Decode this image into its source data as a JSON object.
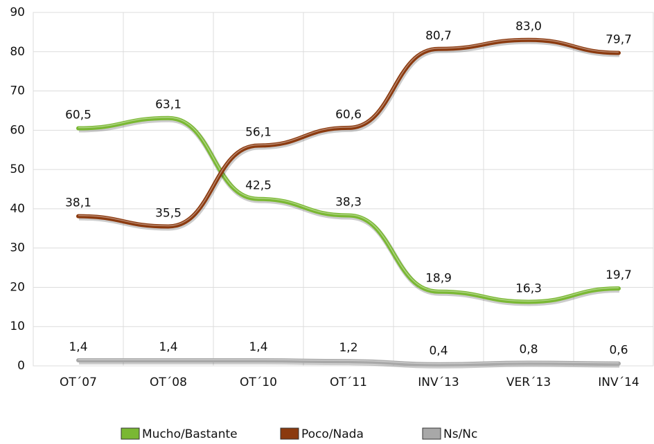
{
  "chart_data": {
    "type": "line",
    "categories": [
      "OT´07",
      "OT´08",
      "OT´10",
      "OT´11",
      "INV´13",
      "VER´13",
      "INV´14"
    ],
    "series": [
      {
        "name": "Mucho/Bastante",
        "color": "#7ab833",
        "values": [
          60.5,
          63.1,
          42.5,
          38.3,
          18.9,
          16.3,
          19.7
        ],
        "value_labels": [
          "60,5",
          "63,1",
          "42,5",
          "38,3",
          "18,9",
          "16,3",
          "19,7"
        ]
      },
      {
        "name": "Poco/Nada",
        "color": "#8b3a0f",
        "values": [
          38.1,
          35.5,
          56.1,
          60.6,
          80.7,
          83.0,
          79.7
        ],
        "value_labels": [
          "38,1",
          "35,5",
          "56,1",
          "60,6",
          "80,7",
          "83,0",
          "79,7"
        ]
      },
      {
        "name": "Ns/Nc",
        "color": "#a8a8a8",
        "values": [
          1.4,
          1.4,
          1.4,
          1.2,
          0.4,
          0.8,
          0.6
        ],
        "value_labels": [
          "1,4",
          "1,4",
          "1,4",
          "1,2",
          "0,4",
          "0,8",
          "0,6"
        ]
      }
    ],
    "ylim": [
      0,
      90
    ],
    "yticks": [
      0,
      10,
      20,
      30,
      40,
      50,
      60,
      70,
      80,
      90
    ],
    "grid": true,
    "legend": "bottom"
  }
}
